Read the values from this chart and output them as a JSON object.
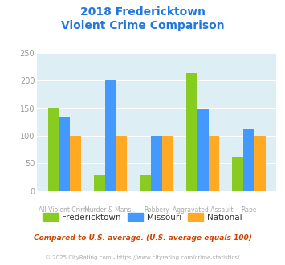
{
  "title_line1": "2018 Fredericktown",
  "title_line2": "Violent Crime Comparison",
  "fredericktown": [
    150,
    28,
    28,
    213,
    60
  ],
  "missouri": [
    133,
    200,
    100,
    148,
    111
  ],
  "national": [
    100,
    100,
    100,
    100,
    100
  ],
  "colors": {
    "fredericktown": "#88cc22",
    "missouri": "#4499ff",
    "national": "#ffaa22"
  },
  "ylim": [
    0,
    250
  ],
  "yticks": [
    0,
    50,
    100,
    150,
    200,
    250
  ],
  "title_color": "#2277dd",
  "plot_bg": "#ddeef5",
  "footer_text": "Compared to U.S. average. (U.S. average equals 100)",
  "credit_text": "© 2025 CityRating.com - https://www.cityrating.com/crime-statistics/",
  "legend_labels": [
    "Fredericktown",
    "Missouri",
    "National"
  ],
  "top_labels": [
    "",
    "Murder & Mans...",
    "",
    "Aggravated Assault",
    ""
  ],
  "bot_labels": [
    "All Violent Crime",
    "",
    "Robbery",
    "",
    "Rape"
  ]
}
